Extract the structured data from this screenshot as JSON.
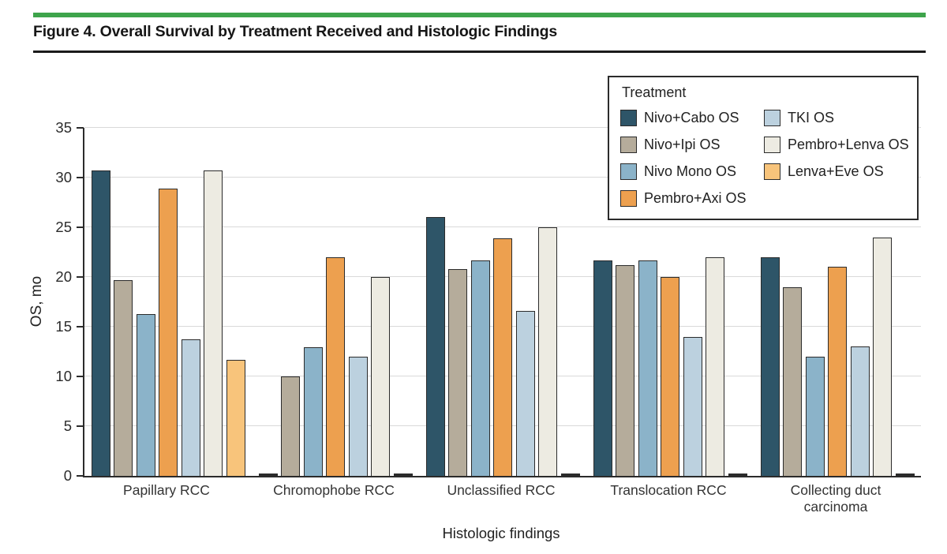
{
  "figure": {
    "title": "Figure 4. Overall Survival by Treatment Received and Histologic Findings",
    "accent_color": "#3ea44b",
    "rule_color": "#1b1b1b"
  },
  "chart_data": {
    "type": "bar",
    "title": "Overall Survival by Treatment Received and Histologic Findings",
    "xlabel": "Histologic findings",
    "ylabel": "OS, mo",
    "ylim": [
      0,
      35
    ],
    "yticks": [
      0,
      5,
      10,
      15,
      20,
      25,
      30,
      35
    ],
    "grid": true,
    "legend_title": "Treatment",
    "legend_position": "top-right",
    "legend_columns": [
      4,
      3
    ],
    "categories": [
      "Papillary RCC",
      "Chromophobe RCC",
      "Unclassified RCC",
      "Translocation RCC",
      "Collecting duct carcinoma"
    ],
    "series": [
      {
        "name": "Nivo+Cabo OS",
        "color": "#2e5568",
        "values": [
          30.7,
          0,
          26.0,
          21.7,
          22.0
        ]
      },
      {
        "name": "Nivo+Ipi OS",
        "color": "#b5ac9b",
        "values": [
          19.7,
          10.0,
          20.8,
          21.2,
          19.0
        ]
      },
      {
        "name": "Nivo Mono OS",
        "color": "#8bb3c9",
        "values": [
          16.3,
          12.9,
          21.7,
          21.7,
          12.0
        ]
      },
      {
        "name": "Pembro+Axi OS",
        "color": "#eda04f",
        "values": [
          28.9,
          22.0,
          23.9,
          20.0,
          21.0
        ]
      },
      {
        "name": "TKI OS",
        "color": "#bcd1df",
        "values": [
          13.7,
          12.0,
          16.6,
          14.0,
          13.0
        ]
      },
      {
        "name": "Pembro+Lenva OS",
        "color": "#edebe2",
        "values": [
          30.7,
          20.0,
          25.0,
          22.0,
          24.0
        ]
      },
      {
        "name": "Lenva+Eve OS",
        "color": "#f8c47b",
        "values": [
          11.7,
          0,
          0,
          0,
          0
        ]
      }
    ],
    "axis_color": "#2b2b2b",
    "gridline_color": "#d9d9d9",
    "bar_outline_color": "#2b2b2b"
  }
}
